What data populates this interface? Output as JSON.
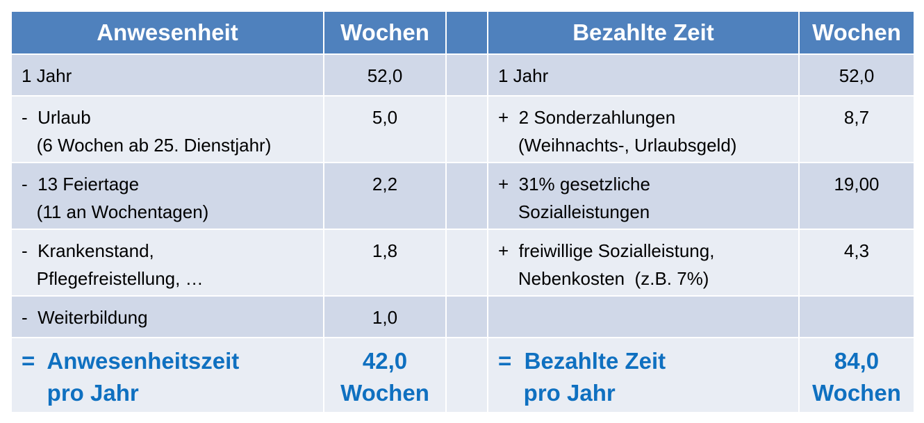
{
  "header": {
    "left_title": "Anwesenheit",
    "left_unit": "Wochen",
    "right_title": "Bezahlte Zeit",
    "right_unit": "Wochen"
  },
  "left_rows": [
    {
      "line1": "1 Jahr",
      "line2": "",
      "value": "52,0"
    },
    {
      "line1": "-  Urlaub",
      "line2": "   (6 Wochen ab 25. Dienstjahr)",
      "value": "5,0"
    },
    {
      "line1": "-  13 Feiertage",
      "line2": "   (11 an Wochentagen)",
      "value": "2,2"
    },
    {
      "line1": "-  Krankenstand,",
      "line2": "   Pflegefreistellung, …",
      "value": "1,8"
    },
    {
      "line1": "-  Weiterbildung",
      "line2": "",
      "value": "1,0"
    }
  ],
  "right_rows": [
    {
      "line1": "1 Jahr",
      "line2": "",
      "value": "52,0"
    },
    {
      "line1": "+  2 Sonderzahlungen",
      "line2": "    (Weihnachts-, Urlaubsgeld)",
      "value": "8,7"
    },
    {
      "line1": "+  31% gesetzliche",
      "line2": "    Sozialleistungen",
      "value": "19,00"
    },
    {
      "line1": "+  freiwillige Sozialleistung,",
      "line2": "    Nebenkosten  (z.B. 7%)",
      "value": "4,3"
    },
    {
      "line1": "",
      "line2": "",
      "value": ""
    }
  ],
  "totals": {
    "left_line1": "=  Anwesenheitszeit",
    "left_line2": "    pro Jahr",
    "left_value1": "42,0",
    "left_value2": "Wochen",
    "right_line1": "=  Bezahlte Zeit",
    "right_line2": "    pro Jahr",
    "right_value1": "84,0",
    "right_value2": "Wochen"
  },
  "colors": {
    "header_bg": "#4f81bd",
    "row_dark": "#d0d8e8",
    "row_light": "#e9edf4",
    "total_text": "#0f70c0"
  }
}
